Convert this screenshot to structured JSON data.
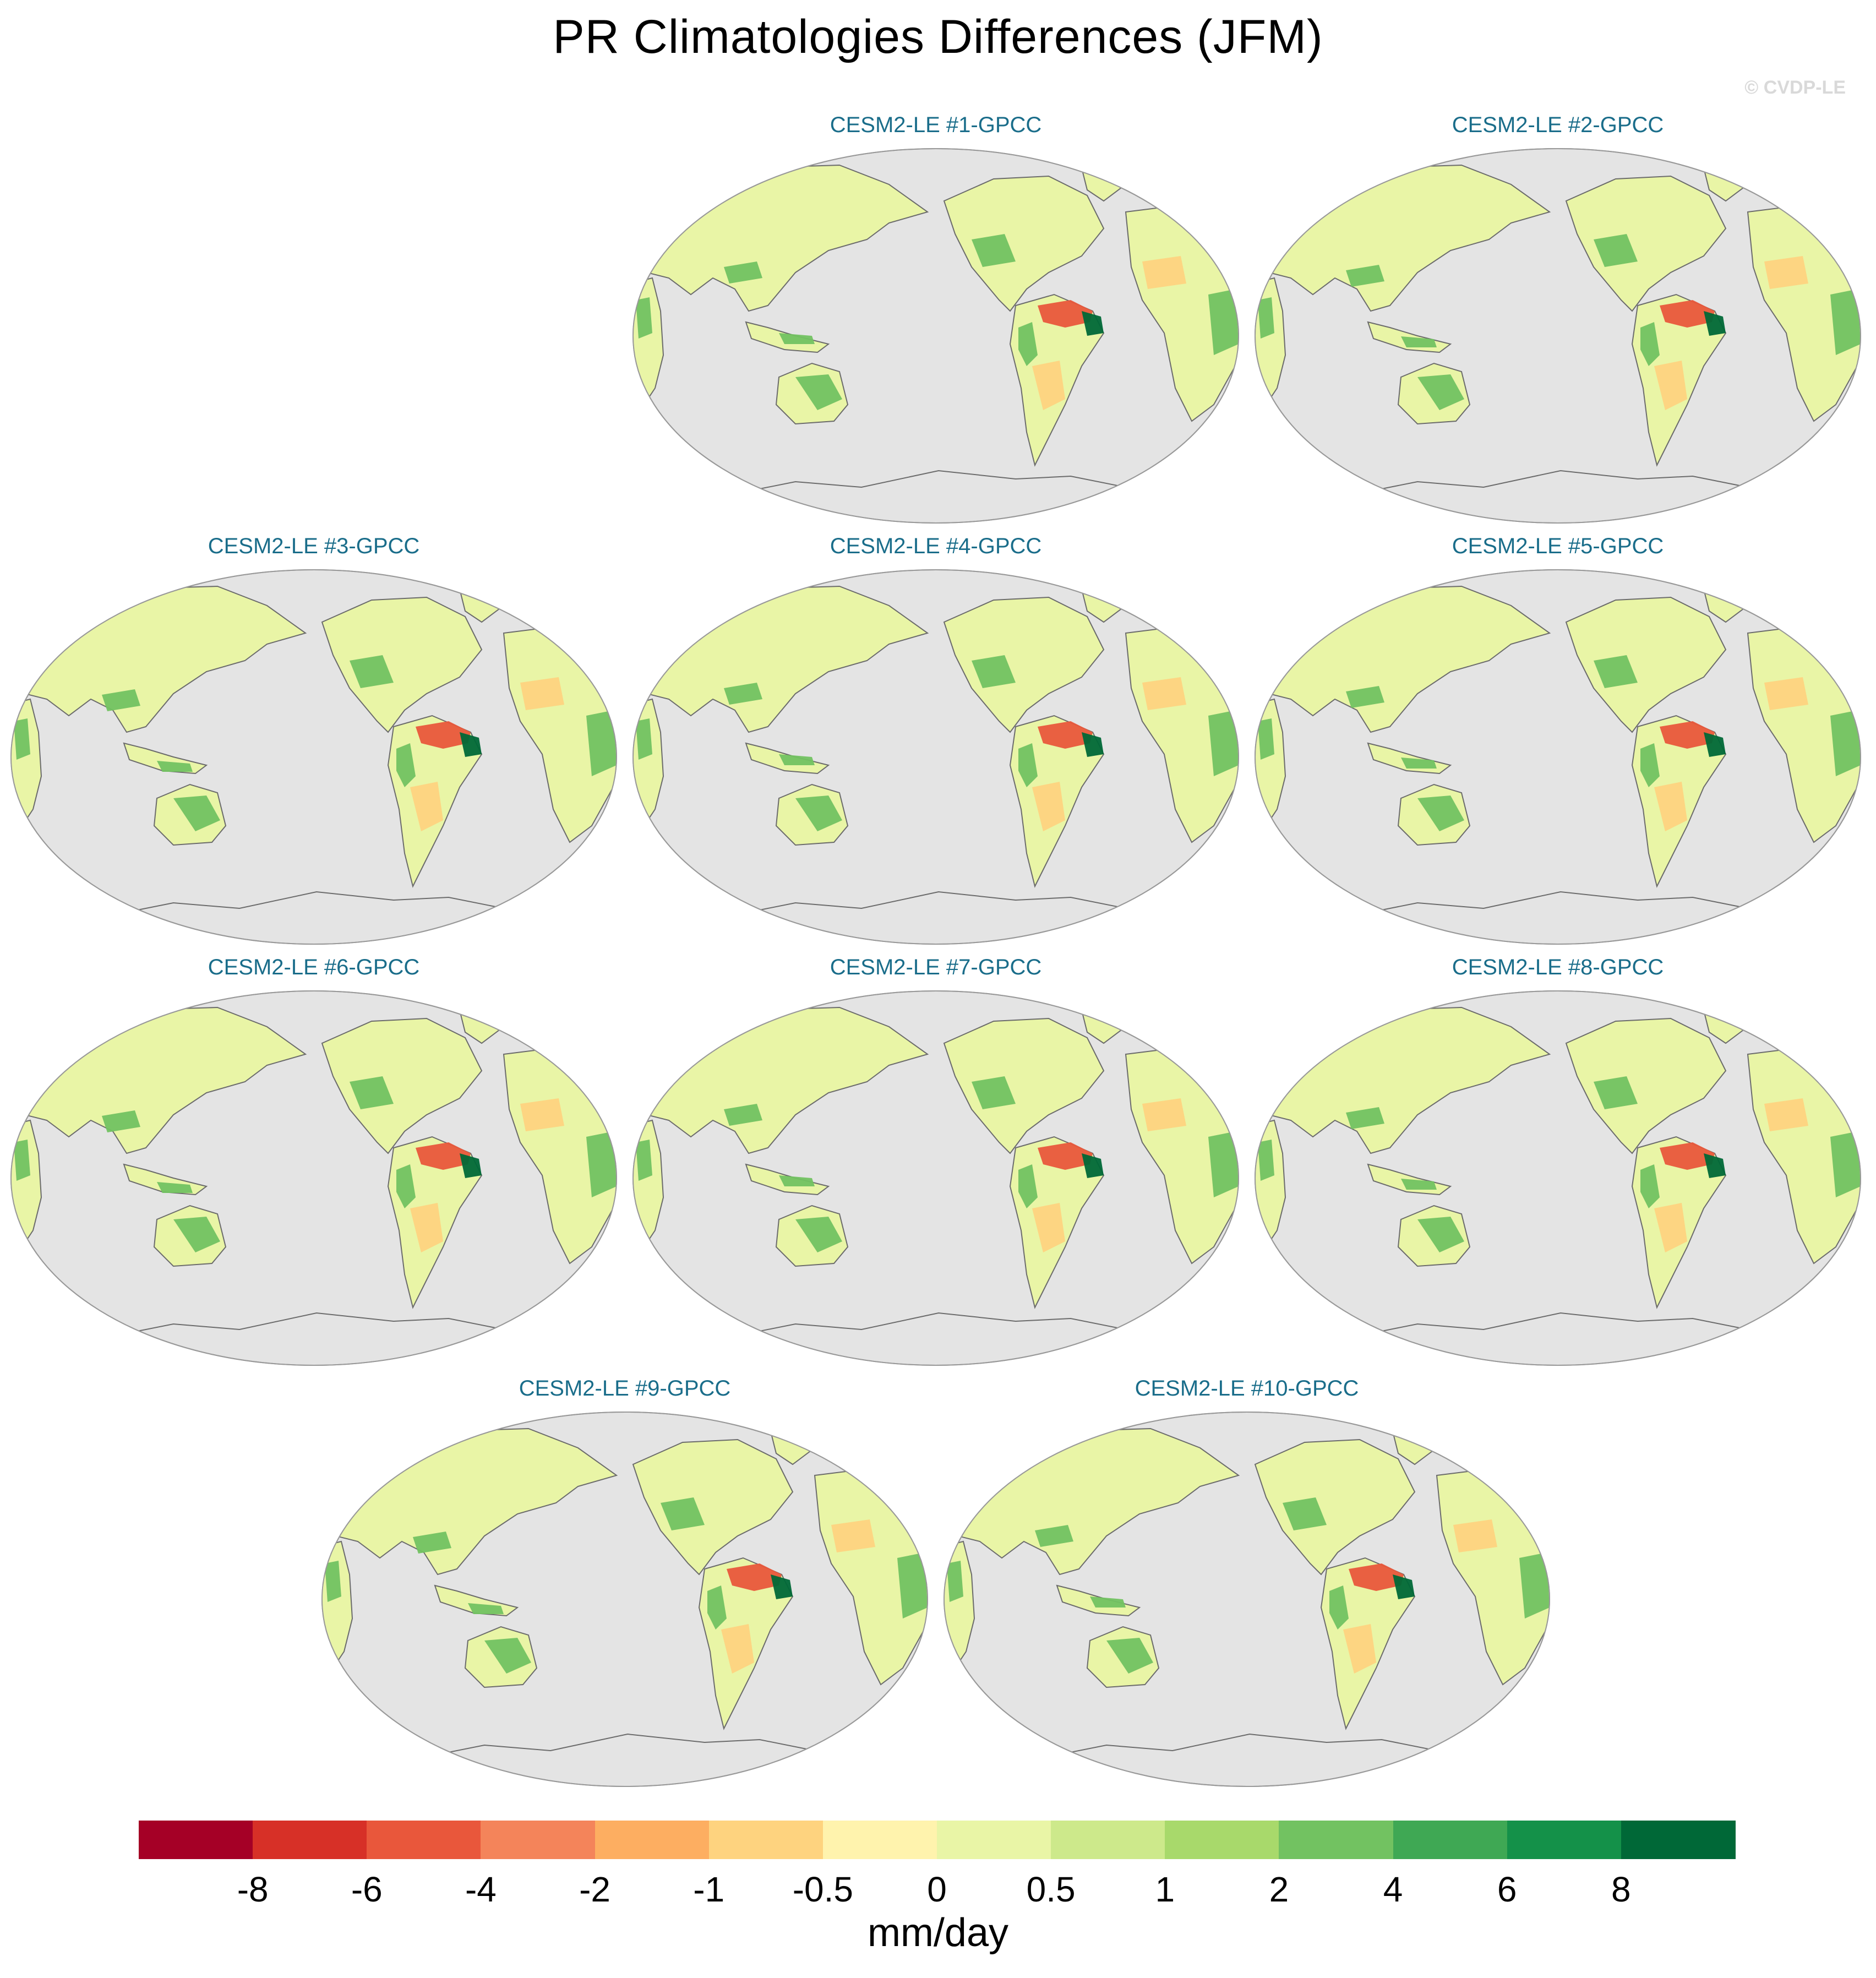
{
  "title": "PR Climatologies Differences (JFM)",
  "copyright": "© CVDP-LE",
  "panels": [
    {
      "label": "CESM2-LE #1-GPCC"
    },
    {
      "label": "CESM2-LE #2-GPCC"
    },
    {
      "label": "CESM2-LE #3-GPCC"
    },
    {
      "label": "CESM2-LE #4-GPCC"
    },
    {
      "label": "CESM2-LE #5-GPCC"
    },
    {
      "label": "CESM2-LE #6-GPCC"
    },
    {
      "label": "CESM2-LE #7-GPCC"
    },
    {
      "label": "CESM2-LE #8-GPCC"
    },
    {
      "label": "CESM2-LE #9-GPCC"
    },
    {
      "label": "CESM2-LE #10-GPCC"
    }
  ],
  "colorbar": {
    "units": "mm/day",
    "labels": [
      "-8",
      "-6",
      "-4",
      "-2",
      "-1",
      "-0.5",
      "0",
      "0.5",
      "1",
      "2",
      "4",
      "6",
      "8"
    ],
    "colors": [
      "#a50026",
      "#d73027",
      "#e9573b",
      "#f4845a",
      "#fdae61",
      "#fed37f",
      "#fff3ad",
      "#e9f5a6",
      "#cde98b",
      "#a8d96b",
      "#72c261",
      "#3fa854",
      "#149149",
      "#006837"
    ]
  },
  "map_colors": {
    "ocean": "#e4e4e4",
    "land_base": "#e9f5a6",
    "dry": "#fed37f",
    "very_dry": "#e9573b",
    "wet": "#72c261",
    "very_wet": "#006837",
    "coast": "#6b6b6b"
  }
}
